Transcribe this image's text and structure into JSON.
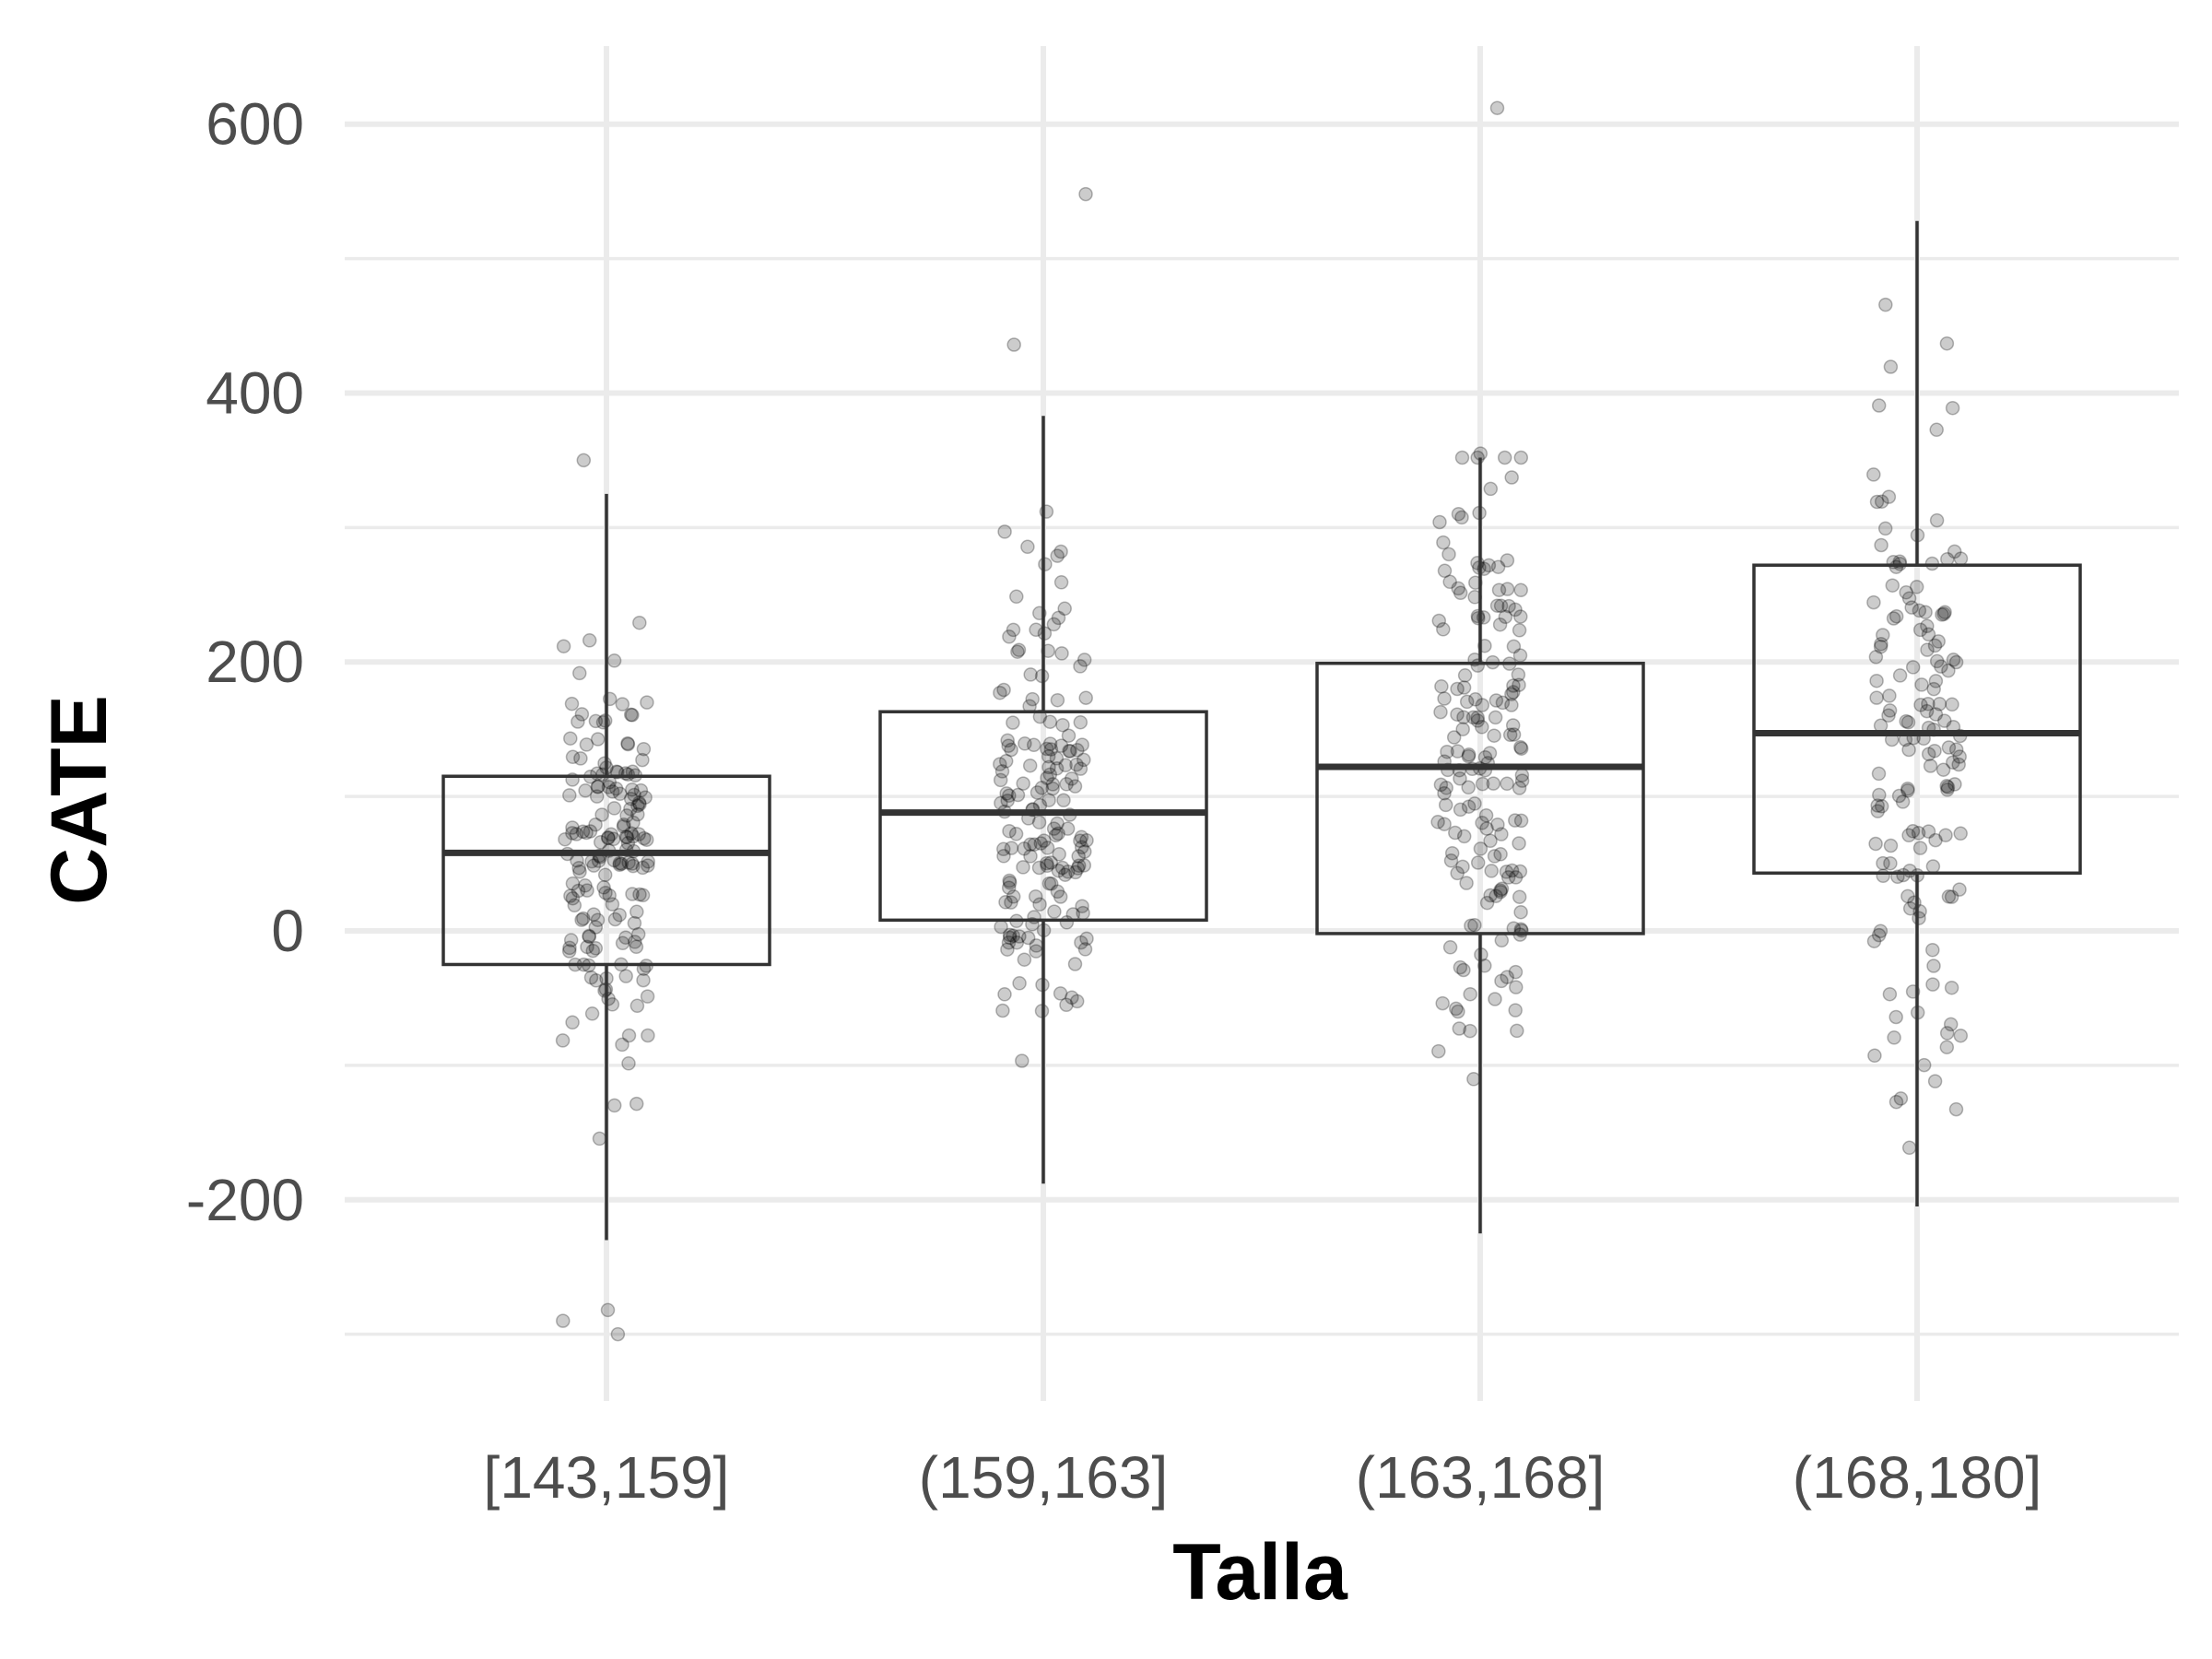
{
  "chart_data": {
    "type": "box",
    "xlabel": "Talla",
    "ylabel": "CATE",
    "categories": [
      "[143,159]",
      "(159,163]",
      "(163,168]",
      "(168,180]"
    ],
    "ylim": [
      -350,
      660
    ],
    "y_ticks": [
      -200,
      0,
      200,
      400,
      600
    ],
    "y_tick_labels": [
      "-200",
      "0",
      "200",
      "400",
      "600"
    ],
    "y_minor_ticks": [
      -300,
      -100,
      100,
      300,
      500
    ],
    "grid": true,
    "legend": "none",
    "boxes": [
      {
        "category": "[143,159]",
        "q1": -25,
        "median": 58,
        "q3": 115,
        "whisker_low": -230,
        "whisker_high": 325,
        "outliers": [
          -300,
          -290,
          -282,
          350
        ]
      },
      {
        "category": "(159,163]",
        "q1": 8,
        "median": 88,
        "q3": 163,
        "whisker_low": -188,
        "whisker_high": 383,
        "outliers": [
          436,
          548
        ]
      },
      {
        "category": "(163,168]",
        "q1": -2,
        "median": 122,
        "q3": 199,
        "whisker_low": -225,
        "whisker_high": 352,
        "outliers": [
          612,
          355
        ]
      },
      {
        "category": "(168,180]",
        "q1": 43,
        "median": 147,
        "q3": 272,
        "whisker_low": -205,
        "whisker_high": 528,
        "outliers": []
      }
    ],
    "jitter_points": [
      {
        "category": "[143,159]",
        "n": 170
      },
      {
        "category": "(159,163]",
        "n": 170
      },
      {
        "category": "(163,168]",
        "n": 170
      },
      {
        "category": "(168,180]",
        "n": 150
      }
    ],
    "colors": {
      "points": "#000000",
      "box_outline": "#333333",
      "grid": "#ebebeb",
      "tick_text": "#4d4d4d"
    }
  }
}
